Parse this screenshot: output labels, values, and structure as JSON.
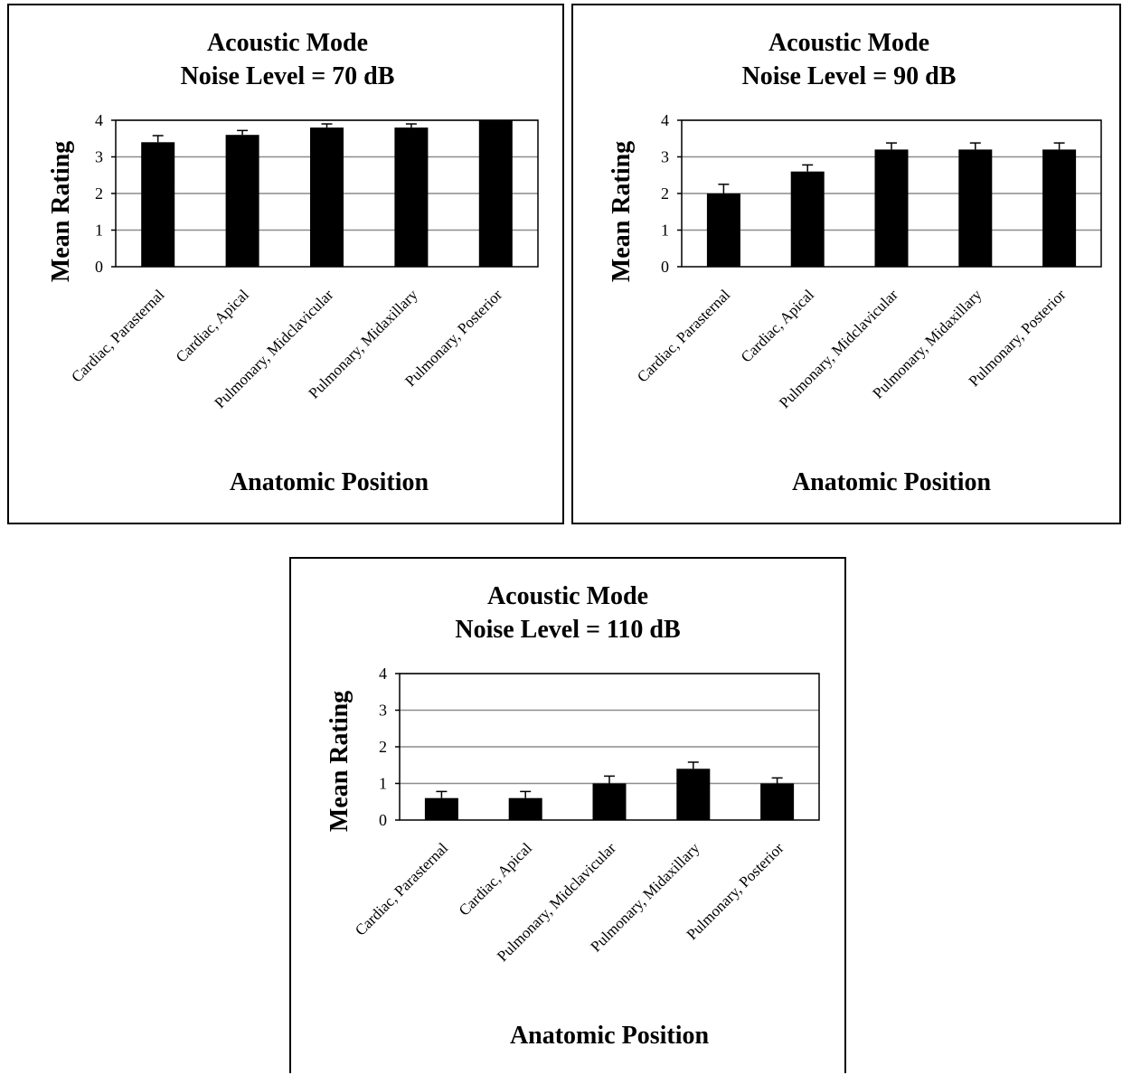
{
  "chart_data": [
    {
      "type": "bar",
      "title_line1": "Acoustic Mode",
      "title_line2": "Noise Level = 70 dB",
      "xlabel": "Anatomic Position",
      "ylabel": "Mean Rating",
      "ylim": [
        0,
        4
      ],
      "yticks": [
        "0",
        "1",
        "2",
        "3",
        "4"
      ],
      "grid": true,
      "categories": [
        "Cardiac, Parasternal",
        "Cardiac, Apical",
        "Pulmonary, Midclavicular",
        "Pulmonary, Midaxillary",
        "Pulmonary, Posterior"
      ],
      "values": [
        3.4,
        3.6,
        3.8,
        3.8,
        4.0
      ],
      "error": [
        0.18,
        0.12,
        0.1,
        0.1,
        0.0
      ],
      "bar_color": "#000000"
    },
    {
      "type": "bar",
      "title_line1": "Acoustic Mode",
      "title_line2": "Noise Level = 90 dB",
      "xlabel": "Anatomic Position",
      "ylabel": "Mean Rating",
      "ylim": [
        0,
        4
      ],
      "yticks": [
        "0",
        "1",
        "2",
        "3",
        "4"
      ],
      "grid": true,
      "categories": [
        "Cardiac, Parasternal",
        "Cardiac, Apical",
        "Pulmonary, Midclavicular",
        "Pulmonary, Midaxillary",
        "Pulmonary, Posterior"
      ],
      "values": [
        2.0,
        2.6,
        3.2,
        3.2,
        3.2
      ],
      "error": [
        0.25,
        0.18,
        0.18,
        0.18,
        0.18
      ],
      "bar_color": "#000000"
    },
    {
      "type": "bar",
      "title_line1": "Acoustic Mode",
      "title_line2": "Noise Level = 110 dB",
      "xlabel": "Anatomic Position",
      "ylabel": "Mean Rating",
      "ylim": [
        0,
        4
      ],
      "yticks": [
        "0",
        "1",
        "2",
        "3",
        "4"
      ],
      "grid": true,
      "categories": [
        "Cardiac, Parasternal",
        "Cardiac, Apical",
        "Pulmonary, Midclavicular",
        "Pulmonary, Midaxillary",
        "Pulmonary, Posterior"
      ],
      "values": [
        0.6,
        0.6,
        1.0,
        1.4,
        1.0
      ],
      "error": [
        0.18,
        0.18,
        0.2,
        0.18,
        0.15
      ],
      "bar_color": "#000000"
    }
  ]
}
